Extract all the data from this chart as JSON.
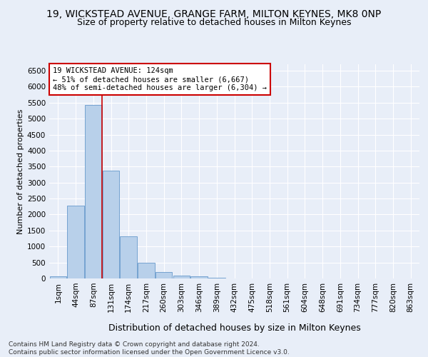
{
  "title": "19, WICKSTEAD AVENUE, GRANGE FARM, MILTON KEYNES, MK8 0NP",
  "subtitle": "Size of property relative to detached houses in Milton Keynes",
  "xlabel": "Distribution of detached houses by size in Milton Keynes",
  "ylabel": "Number of detached properties",
  "footer_line1": "Contains HM Land Registry data © Crown copyright and database right 2024.",
  "footer_line2": "Contains public sector information licensed under the Open Government Licence v3.0.",
  "bar_labels": [
    "1sqm",
    "44sqm",
    "87sqm",
    "131sqm",
    "174sqm",
    "217sqm",
    "260sqm",
    "303sqm",
    "346sqm",
    "389sqm",
    "432sqm",
    "475sqm",
    "518sqm",
    "561sqm",
    "604sqm",
    "648sqm",
    "691sqm",
    "734sqm",
    "777sqm",
    "820sqm",
    "863sqm"
  ],
  "bar_values": [
    75,
    2280,
    5420,
    3380,
    1310,
    490,
    210,
    100,
    60,
    30,
    0,
    0,
    0,
    0,
    0,
    0,
    0,
    0,
    0,
    0,
    0
  ],
  "bar_color": "#b8d0ea",
  "bar_edge_color": "#6699cc",
  "vline_x_index": 2.5,
  "vline_color": "#cc0000",
  "annotation_text": "19 WICKSTEAD AVENUE: 124sqm\n← 51% of detached houses are smaller (6,667)\n48% of semi-detached houses are larger (6,304) →",
  "annotation_box_facecolor": "#ffffff",
  "annotation_box_edgecolor": "#cc0000",
  "ylim_max": 6700,
  "yticks": [
    0,
    500,
    1000,
    1500,
    2000,
    2500,
    3000,
    3500,
    4000,
    4500,
    5000,
    5500,
    6000,
    6500
  ],
  "bg_color": "#e8eef8",
  "grid_color": "#ffffff",
  "title_fontsize": 10,
  "subtitle_fontsize": 9,
  "ylabel_fontsize": 8,
  "xlabel_fontsize": 9,
  "tick_fontsize": 7.5,
  "annot_fontsize": 7.5,
  "footer_fontsize": 6.5
}
